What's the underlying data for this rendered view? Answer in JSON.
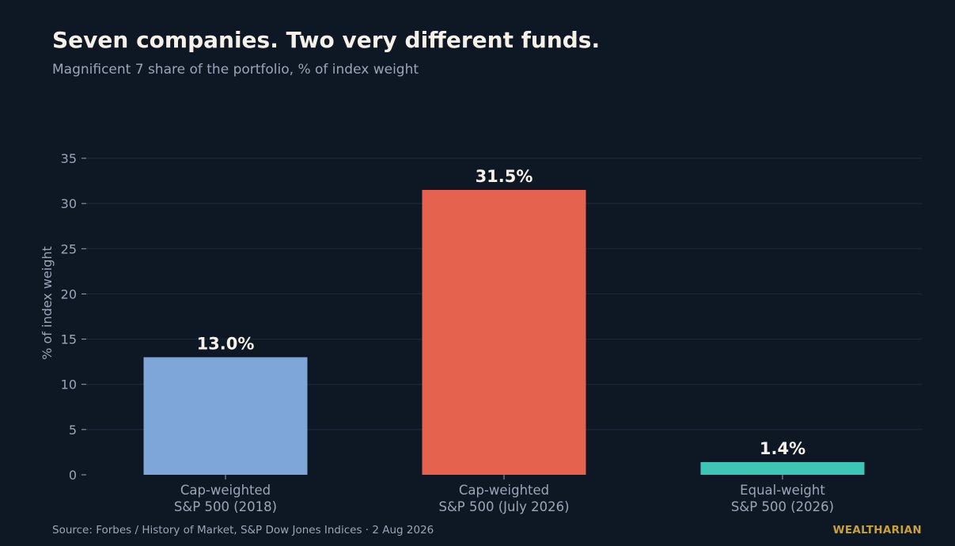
{
  "header": {
    "title": "Seven companies. Two very different funds.",
    "subtitle": "Magnificent 7 share of the portfolio, % of index weight"
  },
  "footer": {
    "source": "Source: Forbes / History of Market, S&P Dow Jones Indices · 2 Aug 2026",
    "brand": "WEALTHARIAN"
  },
  "chart_data": {
    "type": "bar",
    "categories": [
      [
        "Cap-weighted",
        "S&P 500 (2018)"
      ],
      [
        "Cap-weighted",
        "S&P 500 (July 2026)"
      ],
      [
        "Equal-weight",
        "S&P 500 (2026)"
      ]
    ],
    "values": [
      13.0,
      31.5,
      1.4
    ],
    "data_labels": [
      "13.0%",
      "31.5%",
      "1.4%"
    ],
    "colors": [
      "#7fa6d9",
      "#e5624f",
      "#3cc7b4"
    ],
    "ylabel": "% of index weight",
    "ylim": [
      0,
      35
    ],
    "yticks": [
      0,
      5,
      10,
      15,
      20,
      25,
      30,
      35
    ],
    "grid": true
  }
}
